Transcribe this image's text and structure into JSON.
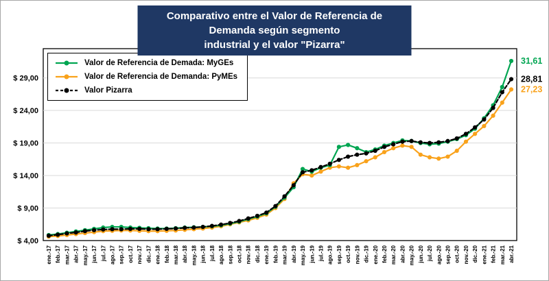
{
  "chart_data": {
    "type": "line",
    "title_line1": "Comparativo entre el Valor de Referencia de Demanda según segmento",
    "title_line2": "industrial y el valor \"Pizarra\"",
    "grid": true,
    "legend_position": "top-left",
    "ylim": [
      4,
      33.5
    ],
    "y_ticks": [
      {
        "value": 4,
        "label": "$ 4,00"
      },
      {
        "value": 9,
        "label": "$ 9,00"
      },
      {
        "value": 14,
        "label": "$ 14,00"
      },
      {
        "value": 19,
        "label": "$ 19,00"
      },
      {
        "value": 24,
        "label": "$ 24,00"
      },
      {
        "value": 29,
        "label": "$ 29,00"
      }
    ],
    "x": [
      "ene.-17",
      "feb.-17",
      "mar.-17",
      "abr.-17",
      "may.-17",
      "jun.-17",
      "jul.-17",
      "ago.-17",
      "sep.-17",
      "oct.-17",
      "nov.-17",
      "dic.-17",
      "ene.-18",
      "feb.-18",
      "mar.-18",
      "abr.-18",
      "may.-18",
      "jun.-18",
      "jul.-18",
      "ago.-18",
      "sep.-18",
      "oct.-18",
      "nov.-18",
      "dic.-18",
      "ene.-19",
      "feb.-19",
      "mar.-19",
      "abr.-19",
      "may.-19",
      "jun.-19",
      "jul.-19",
      "ago.-19",
      "sep.-19",
      "oct.-19",
      "nov.-19",
      "dic.-19",
      "ene.-20",
      "feb.-20",
      "mar.-20",
      "abr.-20",
      "may.-20",
      "jun.-20",
      "jul.-20",
      "ago.-20",
      "sep.-20",
      "oct.-20",
      "nov.-20",
      "dic.-20",
      "ene.-21",
      "feb.-21",
      "mar.-21",
      "abr.-21"
    ],
    "series": [
      {
        "name": "Valor de Referencia de Demada: MyGEs",
        "color": "#00A551",
        "dash": "solid",
        "end_label": "31,61",
        "values": [
          4.85,
          5.0,
          5.2,
          5.4,
          5.6,
          5.8,
          6.0,
          6.1,
          6.1,
          6.0,
          5.95,
          5.9,
          5.85,
          5.85,
          5.9,
          6.0,
          6.05,
          6.1,
          6.2,
          6.35,
          6.6,
          6.9,
          7.3,
          7.7,
          8.2,
          9.2,
          10.6,
          12.2,
          15.0,
          14.6,
          15.2,
          15.6,
          18.4,
          18.7,
          18.2,
          17.6,
          18.0,
          18.6,
          19.0,
          19.4,
          19.3,
          19.0,
          18.8,
          18.9,
          19.2,
          19.6,
          20.2,
          21.2,
          22.8,
          24.8,
          27.6,
          31.61
        ]
      },
      {
        "name": "Valor de Referencia de Demanda: PyMEs",
        "color": "#F9A21B",
        "dash": "solid",
        "end_label": "27,23",
        "values": [
          4.6,
          4.7,
          4.85,
          5.0,
          5.15,
          5.3,
          5.45,
          5.5,
          5.55,
          5.55,
          5.5,
          5.45,
          5.45,
          5.5,
          5.55,
          5.65,
          5.75,
          5.85,
          6.0,
          6.2,
          6.5,
          6.8,
          7.1,
          7.5,
          8.0,
          9.0,
          10.4,
          12.8,
          14.2,
          14.0,
          14.6,
          15.2,
          15.4,
          15.2,
          15.6,
          16.2,
          16.8,
          17.6,
          18.2,
          18.6,
          18.4,
          17.2,
          16.8,
          16.6,
          16.9,
          17.8,
          19.2,
          20.4,
          21.6,
          23.2,
          25.2,
          27.23
        ]
      },
      {
        "name": "Valor Pizarra",
        "color": "#000000",
        "dash": "dashed",
        "end_label": "28,81",
        "values": [
          4.75,
          4.9,
          5.1,
          5.25,
          5.45,
          5.6,
          5.7,
          5.75,
          5.75,
          5.8,
          5.8,
          5.75,
          5.75,
          5.8,
          5.85,
          5.95,
          6.0,
          6.1,
          6.25,
          6.45,
          6.7,
          7.0,
          7.4,
          7.8,
          8.3,
          9.3,
          10.8,
          12.5,
          14.5,
          14.8,
          15.3,
          15.8,
          16.4,
          16.9,
          17.2,
          17.4,
          17.8,
          18.4,
          18.8,
          19.2,
          19.3,
          19.1,
          19.0,
          19.1,
          19.3,
          19.7,
          20.4,
          21.4,
          22.6,
          24.4,
          26.8,
          28.81
        ]
      }
    ],
    "colors": {
      "title_background": "#1F3864",
      "title_text": "#FFFFFF",
      "gridline": "#D9D9D9",
      "plot_border": "#000000"
    }
  }
}
